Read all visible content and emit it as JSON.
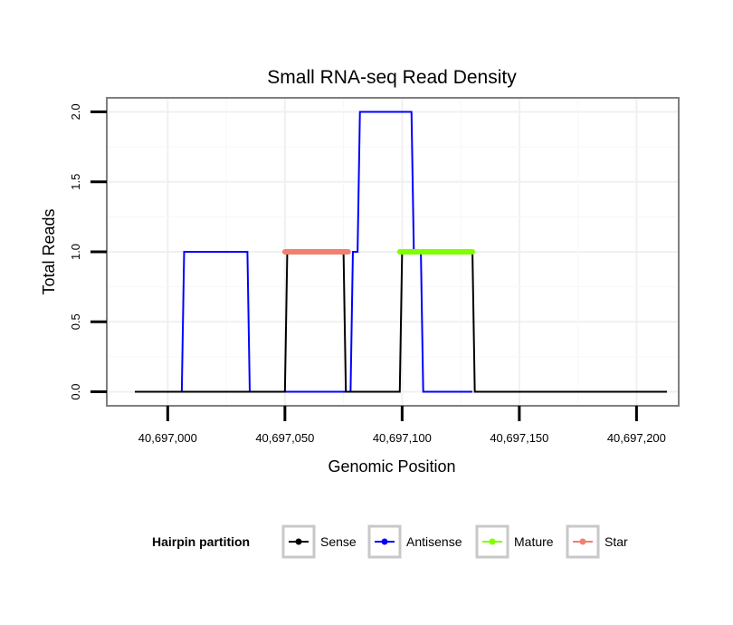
{
  "chart_data": {
    "type": "line",
    "title": "Small RNA-seq Read Density",
    "xlabel": "Genomic Position",
    "ylabel": "Total Reads",
    "xlim": [
      40696974,
      40697218
    ],
    "ylim": [
      -0.1,
      2.1
    ],
    "x_ticks": [
      40697000,
      40697050,
      40697100,
      40697150,
      40697200
    ],
    "x_tick_labels": [
      "40,697,000",
      "40,697,050",
      "40,697,100",
      "40,697,150",
      "40,697,200"
    ],
    "y_ticks": [
      0,
      0.5,
      1,
      1.5,
      2
    ],
    "y_tick_labels": [
      "0.0",
      "0.5",
      "1.0",
      "1.5",
      "2.0"
    ],
    "grid": true,
    "legend": {
      "title": "Hairpin partition",
      "position": "bottom",
      "entries": [
        {
          "name": "Sense",
          "color": "#000000"
        },
        {
          "name": "Antisense",
          "color": "#0000ff"
        },
        {
          "name": "Mature",
          "color": "#7fff00"
        },
        {
          "name": "Star",
          "color": "#f08070"
        }
      ]
    },
    "series": [
      {
        "name": "Sense",
        "color": "#000000",
        "x": [
          40696986,
          40697050,
          40697051,
          40697075,
          40697076,
          40697099,
          40697100,
          40697130,
          40697131,
          40697213
        ],
        "y": [
          0,
          0,
          1,
          1,
          0,
          0,
          1,
          1,
          0,
          0
        ]
      },
      {
        "name": "Antisense",
        "color": "#0000ff",
        "x": [
          40696986,
          40697006,
          40697007,
          40697034,
          40697035,
          40697050,
          40697051,
          40697074,
          40697075,
          40697078,
          40697079,
          40697081,
          40697082,
          40697104,
          40697105,
          40697108,
          40697109,
          40697130
        ],
        "y": [
          0,
          0,
          1,
          1,
          0,
          0,
          0,
          0,
          0,
          0,
          1,
          1,
          2,
          2,
          1,
          1,
          0,
          0
        ]
      },
      {
        "name": "Mature",
        "color": "#7fff00",
        "x": [
          40697099,
          40697130
        ],
        "y": [
          1,
          1
        ]
      },
      {
        "name": "Star",
        "color": "#f08070",
        "x": [
          40697050,
          40697077
        ],
        "y": [
          1,
          1
        ]
      }
    ]
  }
}
